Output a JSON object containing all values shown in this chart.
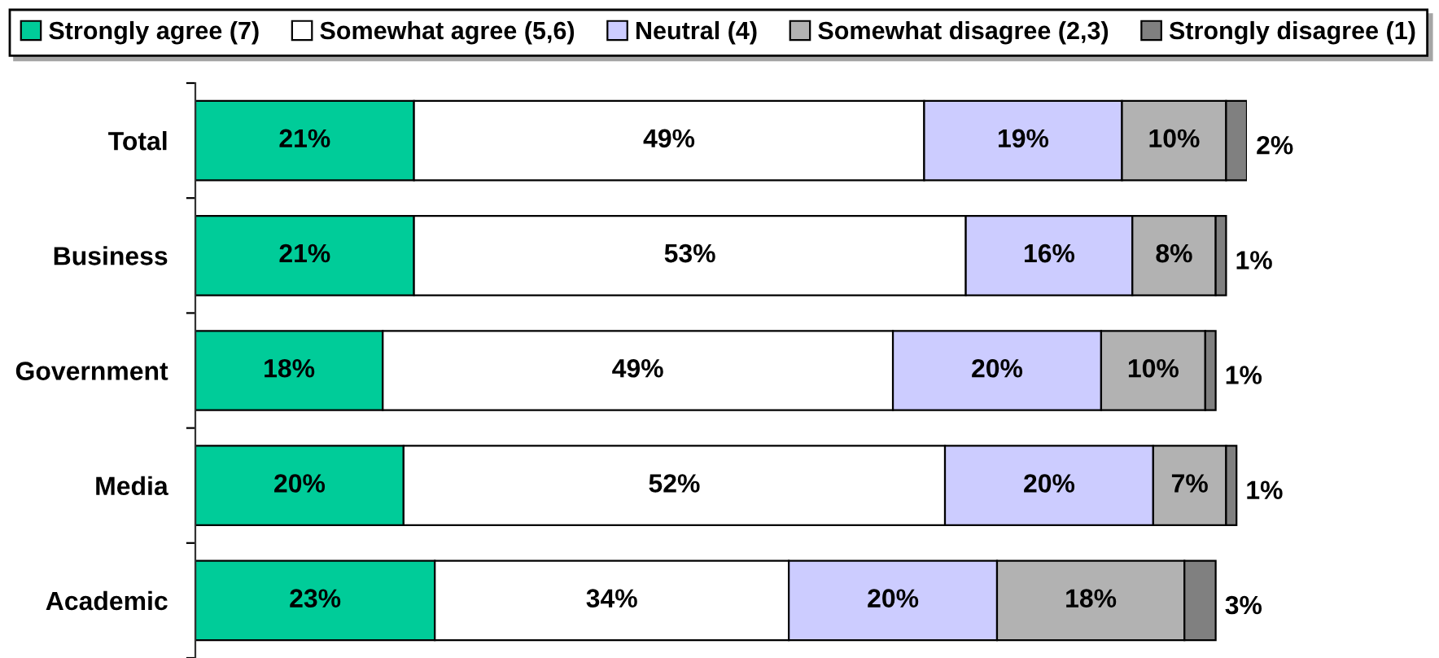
{
  "chart_data": {
    "type": "bar",
    "orientation": "horizontal",
    "stacked": true,
    "legend": "top",
    "categories": [
      "Total",
      "Business",
      "Government",
      "Media",
      "Academic"
    ],
    "series": [
      {
        "name": "Strongly agree (7)",
        "color": "#00cc99",
        "values": [
          21,
          21,
          18,
          20,
          23
        ],
        "value_labels": [
          "21%",
          "21%",
          "18%",
          "20%",
          "23%"
        ]
      },
      {
        "name": "Somewhat agree (5,6)",
        "color": "#ffffff",
        "values": [
          49,
          53,
          49,
          52,
          34
        ],
        "value_labels": [
          "49%",
          "53%",
          "49%",
          "52%",
          "34%"
        ]
      },
      {
        "name": "Neutral (4)",
        "color": "#ccccff",
        "values": [
          19,
          16,
          20,
          20,
          20
        ],
        "value_labels": [
          "19%",
          "16%",
          "20%",
          "20%",
          "20%"
        ]
      },
      {
        "name": "Somewhat disagree (2,3)",
        "color": "#b2b2b2",
        "values": [
          10,
          8,
          10,
          7,
          18
        ],
        "value_labels": [
          "10%",
          "8%",
          "10%",
          "7%",
          "18%"
        ]
      },
      {
        "name": "Strongly disagree (1)",
        "color": "#808080",
        "values": [
          2,
          1,
          1,
          1,
          3
        ],
        "value_labels": [
          "2%",
          "1%",
          "1%",
          "1%",
          "3%"
        ]
      }
    ]
  }
}
